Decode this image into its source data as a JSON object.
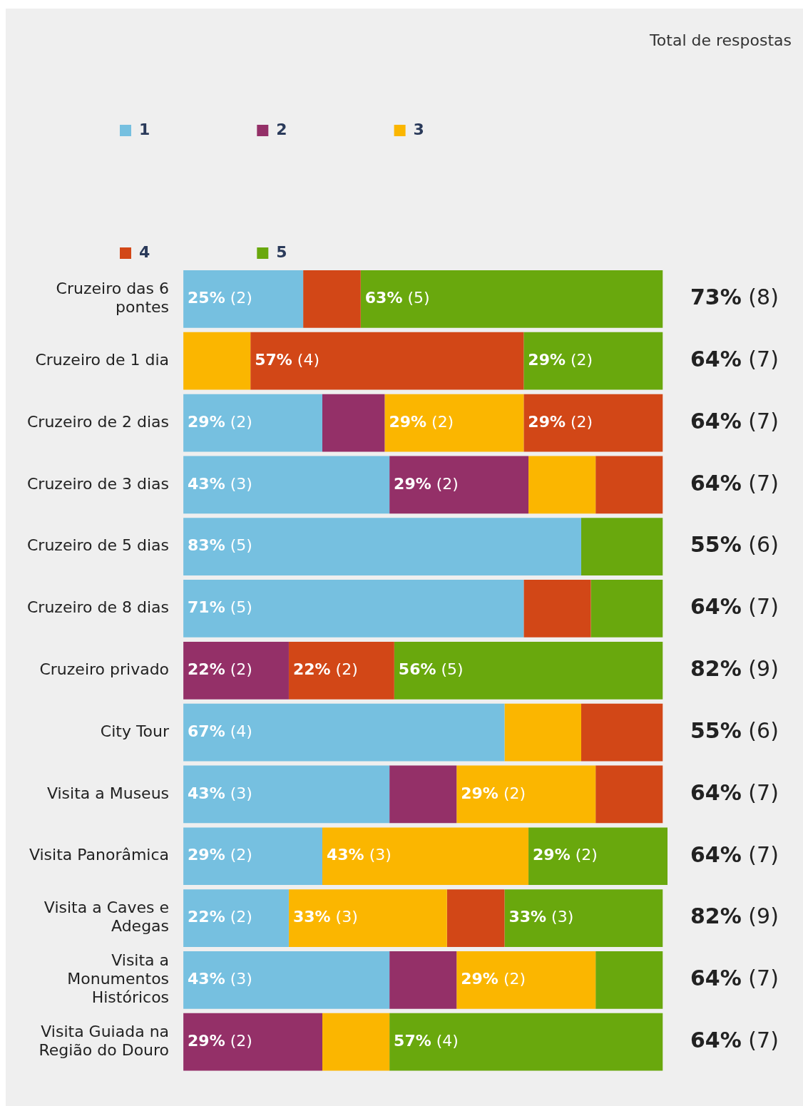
{
  "chart_data": {
    "type": "bar",
    "orientation": "horizontal",
    "stacked": true,
    "legend": "top left",
    "grid": false,
    "categories": [
      "Cruzeiro das 6 pontes",
      "Cruzeiro de 1 dia",
      "Cruzeiro de 2 dias",
      "Cruzeiro de 3 dias",
      "Cruzeiro de 5 dias",
      "Cruzeiro de 8 dias",
      "Cruzeiro privado",
      "City Tour",
      "Visita a Museus",
      "Visita Panorâmica",
      "Visita a Caves e Adegas",
      "Visita a Monumentos Históricos",
      "Visita Guiada na Região do Douro"
    ],
    "xlim": [
      0,
      101
    ],
    "series": [
      {
        "name": "1",
        "color": "#76c0e0",
        "values": [
          25,
          0,
          29,
          43,
          83,
          71,
          0,
          67,
          43,
          29,
          22,
          43,
          0
        ],
        "value_labels": [
          "25% (2)",
          null,
          "29% (2)",
          "43% (3)",
          "83% (5)",
          "71% (5)",
          null,
          "67% (4)",
          "43% (3)",
          "29% (2)",
          "22% (2)",
          "43% (3)",
          null
        ]
      },
      {
        "name": "2",
        "color": "#943068",
        "values": [
          0,
          0,
          13,
          29,
          0,
          0,
          22,
          0,
          14,
          0,
          0,
          14,
          29
        ],
        "value_labels": [
          null,
          null,
          null,
          "29% (2)",
          null,
          null,
          "22% (2)",
          null,
          null,
          null,
          null,
          null,
          "29% (2)"
        ]
      },
      {
        "name": "3",
        "color": "#fbb600",
        "values": [
          0,
          14,
          29,
          14,
          0,
          0,
          0,
          16,
          29,
          43,
          33,
          29,
          14
        ],
        "value_labels": [
          null,
          null,
          "29% (2)",
          null,
          null,
          null,
          null,
          null,
          "29% (2)",
          "43% (3)",
          "33% (3)",
          "29% (2)",
          null
        ]
      },
      {
        "name": "4",
        "color": "#d24717",
        "values": [
          12,
          57,
          29,
          14,
          0,
          14,
          22,
          17,
          14,
          0,
          12,
          0,
          0
        ],
        "value_labels": [
          null,
          "57% (4)",
          "29% (2)",
          null,
          null,
          null,
          "22% (2)",
          null,
          null,
          null,
          null,
          null,
          null
        ]
      },
      {
        "name": "5",
        "color": "#69a80d",
        "values": [
          63,
          29,
          0,
          0,
          17,
          15,
          56,
          0,
          0,
          29,
          33,
          14,
          57
        ],
        "value_labels": [
          "63% (5)",
          "29% (2)",
          null,
          null,
          null,
          null,
          "56% (5)",
          null,
          null,
          "29% (2)",
          "33% (3)",
          null,
          "57% (4)"
        ]
      }
    ],
    "totals": [
      "73% (8)",
      "64% (7)",
      "64% (7)",
      "64% (7)",
      "55% (6)",
      "64% (7)",
      "82% (9)",
      "55% (6)",
      "64% (7)",
      "64% (7)",
      "82% (9)",
      "64% (7)",
      "64% (7)"
    ],
    "annotations": [
      "Total de respostas"
    ]
  }
}
